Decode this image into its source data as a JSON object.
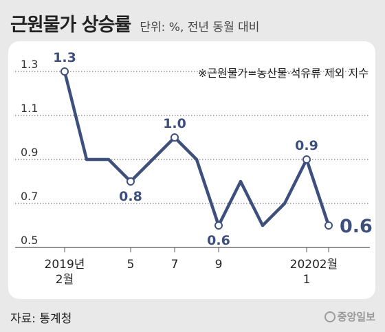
{
  "header": {
    "title": "근원물가 상승률",
    "unit": "단위: %, 전년 동월 대비"
  },
  "footer": {
    "source": "자료: 통계청",
    "logo": "중앙일보"
  },
  "colors": {
    "line": "#3d4f7c",
    "grid": "#555555",
    "label": "#3d4f7c",
    "background": "#e9e9e9"
  },
  "chart_data": {
    "type": "line",
    "title": "근원물가 상승률",
    "note": "※근원물가=농산물·석유류 제외 지수",
    "ylim": [
      0.5,
      1.3
    ],
    "yticks": [
      "1.3",
      "1.1",
      "0.9",
      "0.7",
      "0.5"
    ],
    "x": [
      "2019-02",
      "2019-03",
      "2019-04",
      "2019-05",
      "2019-06",
      "2019-07",
      "2019-08",
      "2019-09",
      "2019-10",
      "2019-11",
      "2019-12",
      "2020-01",
      "2020-02"
    ],
    "values": [
      1.3,
      0.9,
      0.9,
      0.8,
      0.9,
      1.0,
      0.9,
      0.6,
      0.8,
      0.6,
      0.7,
      0.9,
      0.6
    ],
    "xtick_labels": [
      {
        "index": 0,
        "lines": [
          "2019년",
          "2월"
        ]
      },
      {
        "index": 3,
        "lines": [
          "5"
        ]
      },
      {
        "index": 5,
        "lines": [
          "7"
        ]
      },
      {
        "index": 7,
        "lines": [
          "9"
        ]
      },
      {
        "index": 11,
        "lines": [
          "2020.",
          "1"
        ]
      },
      {
        "index": 12,
        "lines": [
          "2월"
        ]
      }
    ],
    "data_labels": [
      {
        "index": 0,
        "text": "1.3",
        "pos": "above"
      },
      {
        "index": 3,
        "text": "0.8",
        "pos": "below"
      },
      {
        "index": 5,
        "text": "1.0",
        "pos": "above"
      },
      {
        "index": 7,
        "text": "0.6",
        "pos": "below"
      },
      {
        "index": 11,
        "text": "0.9",
        "pos": "above"
      },
      {
        "index": 12,
        "text": "0.6",
        "pos": "right-large"
      }
    ]
  }
}
